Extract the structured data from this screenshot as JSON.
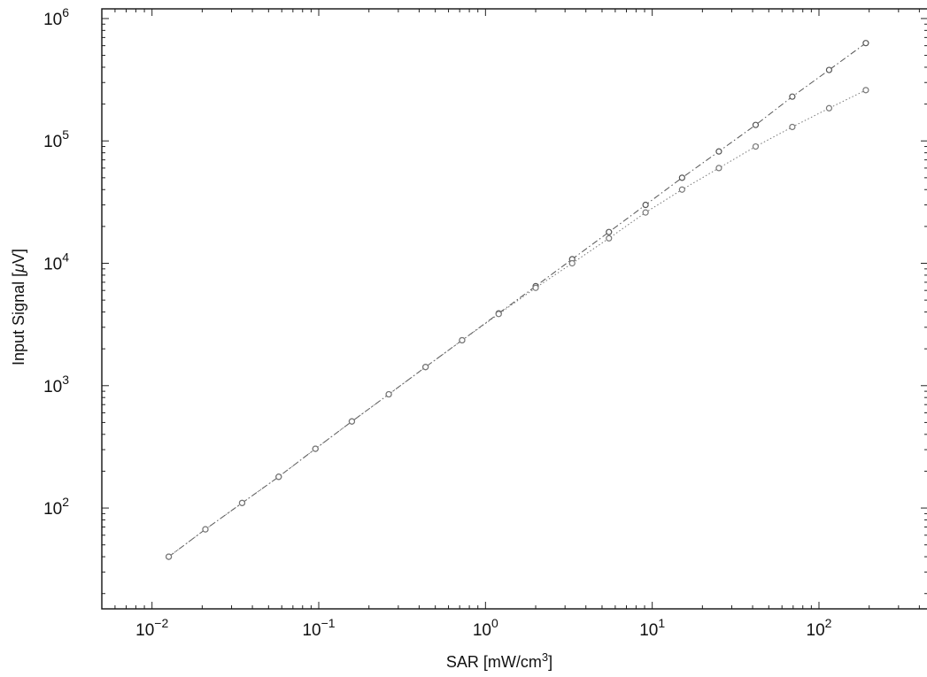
{
  "chart_data": {
    "type": "line",
    "title": "",
    "xlabel": "SAR [mW/cm",
    "xlabel_sup": "3",
    "xlabel_end": "]",
    "ylabel": "Input Signal [",
    "ylabel_mu": "μ",
    "ylabel_end": "V]",
    "x_scale": "log",
    "y_scale": "log",
    "xlim": [
      0.005,
      450
    ],
    "ylim": [
      15,
      1200000
    ],
    "grid": false,
    "legend": "none",
    "x_ticks": [
      {
        "value": 0.01,
        "base": "10",
        "exp": "−2"
      },
      {
        "value": 0.1,
        "base": "10",
        "exp": "−1"
      },
      {
        "value": 1,
        "base": "10",
        "exp": "0"
      },
      {
        "value": 10,
        "base": "10",
        "exp": "1"
      },
      {
        "value": 100,
        "base": "10",
        "exp": "2"
      }
    ],
    "y_ticks": [
      {
        "value": 100,
        "base": "10",
        "exp": "2"
      },
      {
        "value": 1000,
        "base": "10",
        "exp": "3"
      },
      {
        "value": 10000,
        "base": "10",
        "exp": "4"
      },
      {
        "value": 100000,
        "base": "10",
        "exp": "5"
      },
      {
        "value": 1000000,
        "base": "10",
        "exp": "6"
      }
    ],
    "series": [
      {
        "style": "dashdot",
        "color": "#555555",
        "x": [
          0.0126,
          0.0209,
          0.0347,
          0.0575,
          0.0955,
          0.158,
          0.263,
          0.437,
          0.724,
          1.2,
          2.0,
          3.31,
          5.5,
          9.12,
          15.1,
          25.1,
          41.7,
          69.2,
          115,
          191
        ],
        "y": [
          40,
          67,
          110,
          180,
          305,
          510,
          850,
          1420,
          2350,
          3900,
          6500,
          10800,
          18000,
          30000,
          50000,
          82000,
          135000,
          230000,
          380000,
          630000
        ]
      },
      {
        "style": "dotted",
        "color": "#777777",
        "x": [
          0.0126,
          0.0209,
          0.0347,
          0.0575,
          0.0955,
          0.158,
          0.263,
          0.437,
          0.724,
          1.2,
          2.0,
          3.31,
          5.5,
          9.12,
          15.1,
          25.1,
          41.7,
          69.2,
          115,
          191
        ],
        "y": [
          40,
          67,
          110,
          180,
          305,
          510,
          850,
          1420,
          2350,
          3850,
          6300,
          10000,
          16000,
          26000,
          40000,
          60000,
          90000,
          130000,
          185000,
          260000
        ]
      }
    ]
  }
}
